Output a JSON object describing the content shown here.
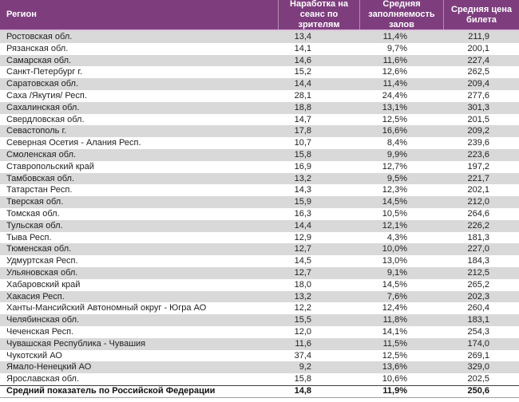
{
  "colors": {
    "header_bg": "#7e3e7e",
    "header_text": "#ffffff",
    "header_divider": "rgba(255,255,255,0.4)",
    "header_underline": "#dcc3dc",
    "row_alt_bg": "#d9d9d9",
    "row_bg": "#ffffff",
    "body_text": "#1f1f1f",
    "total_border_top": "#3f3f3f",
    "total_border_bottom": "#9e9e9e"
  },
  "chart_data": {
    "type": "table",
    "columns": [
      "Регион",
      "Наработка на сеанс по зрителям",
      "Средняя заполняемость залов",
      "Средняя цена билета"
    ],
    "rows": [
      [
        "Ростовская обл.",
        "13,4",
        "11,4%",
        "211,9"
      ],
      [
        "Рязанская обл.",
        "14,1",
        "9,7%",
        "200,1"
      ],
      [
        "Самарская обл.",
        "14,6",
        "11,6%",
        "227,4"
      ],
      [
        "Санкт-Петербург г.",
        "15,2",
        "12,6%",
        "262,5"
      ],
      [
        "Саратовская обл.",
        "14,4",
        "11,4%",
        "209,4"
      ],
      [
        "Саха /Якутия/ Респ.",
        "28,1",
        "24,4%",
        "277,6"
      ],
      [
        "Сахалинская обл.",
        "18,8",
        "13,1%",
        "301,3"
      ],
      [
        "Свердловская обл.",
        "14,7",
        "12,5%",
        "201,5"
      ],
      [
        "Севастополь г.",
        "17,8",
        "16,6%",
        "209,2"
      ],
      [
        "Северная Осетия - Алания Респ.",
        "10,7",
        "8,4%",
        "239,6"
      ],
      [
        "Смоленская обл.",
        "15,8",
        "9,9%",
        "223,6"
      ],
      [
        "Ставропольский край",
        "16,9",
        "12,7%",
        "197,2"
      ],
      [
        "Тамбовская обл.",
        "13,2",
        "9,5%",
        "221,7"
      ],
      [
        "Татарстан Респ.",
        "14,3",
        "12,3%",
        "202,1"
      ],
      [
        "Тверская обл.",
        "15,9",
        "14,5%",
        "212,0"
      ],
      [
        "Томская обл.",
        "16,3",
        "10,5%",
        "264,6"
      ],
      [
        "Тульская обл.",
        "14,4",
        "12,1%",
        "226,2"
      ],
      [
        "Тыва Респ.",
        "12,9",
        "4,3%",
        "181,3"
      ],
      [
        "Тюменская обл.",
        "12,7",
        "10,0%",
        "227,0"
      ],
      [
        "Удмуртская Респ.",
        "14,5",
        "13,0%",
        "184,3"
      ],
      [
        "Ульяновская обл.",
        "12,7",
        "9,1%",
        "212,5"
      ],
      [
        "Хабаровский край",
        "18,0",
        "14,5%",
        "265,2"
      ],
      [
        "Хакасия Респ.",
        "13,2",
        "7,6%",
        "202,3"
      ],
      [
        "Ханты-Мансийский Автономный округ - Югра АО",
        "12,2",
        "12,4%",
        "260,4"
      ],
      [
        "Челябинская обл.",
        "15,5",
        "11,8%",
        "183,1"
      ],
      [
        "Чеченская Респ.",
        "12,0",
        "14,1%",
        "254,3"
      ],
      [
        "Чувашская Республика - Чувашия",
        "11,6",
        "11,5%",
        "174,0"
      ],
      [
        "Чукотский АО",
        "37,4",
        "12,5%",
        "269,1"
      ],
      [
        "Ямало-Ненецкий АО",
        "9,2",
        "13,6%",
        "329,0"
      ],
      [
        "Ярославская обл.",
        "15,8",
        "10,6%",
        "202,5"
      ]
    ],
    "total_row": [
      "Средний показатель по Российской Федерации",
      "14,8",
      "11,9%",
      "250,6"
    ]
  }
}
